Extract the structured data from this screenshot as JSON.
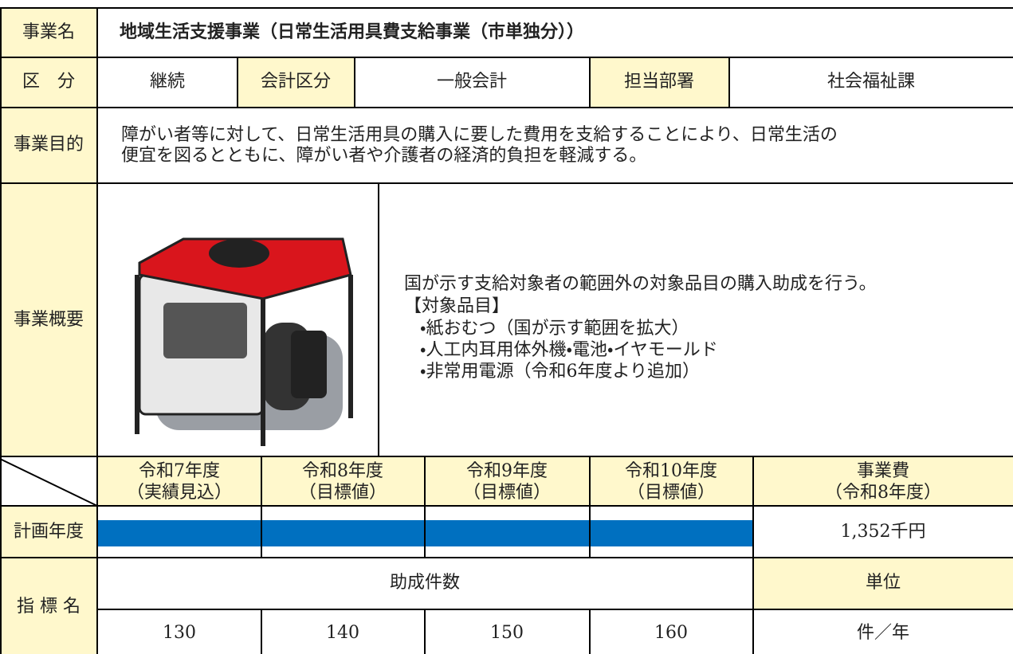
{
  "header": {
    "label": "事業名",
    "title": "地域生活支援事業（日常生活用具費支給事業（市単独分））"
  },
  "classification": {
    "label": "区　分",
    "status": "継続",
    "account_label": "会計区分",
    "account": "一般会計",
    "department_label": "担当部署",
    "department": "社会福祉課"
  },
  "purpose": {
    "label": "事業目的",
    "lines": [
      "障がい者等に対して、日常生活用具の購入に要した費用を支給することにより、日常生活の",
      "便宜を図るとともに、障がい者や介護者の経済的負担を軽減する。"
    ]
  },
  "overview": {
    "label": "事業概要",
    "lead": "国が示す支給対象者の範囲外の対象品目の購入助成を行う。",
    "items_heading": "【対象品目】",
    "items": [
      "・紙おむつ（国が示す範囲を拡大）",
      "・人工内耳用体外機・電池・イヤモールド",
      "・非常用電源（令和6年度より追加）"
    ]
  },
  "plan": {
    "years": [
      {
        "year": "令和7年度",
        "note": "（実績見込）"
      },
      {
        "year": "令和8年度",
        "note": "（目標値）"
      },
      {
        "year": "令和9年度",
        "note": "（目標値）"
      },
      {
        "year": "令和10年度",
        "note": "（目標値）"
      }
    ],
    "cost_header": {
      "title": "事業費",
      "note": "（令和8年度）"
    },
    "label": "計画年度",
    "cost": "1,352千円"
  },
  "indicator": {
    "label": "指 標 名",
    "name": "助成件数",
    "unit_label": "単位",
    "targets": [
      "130",
      "140",
      "150",
      "160"
    ],
    "unit": "件／年"
  }
}
